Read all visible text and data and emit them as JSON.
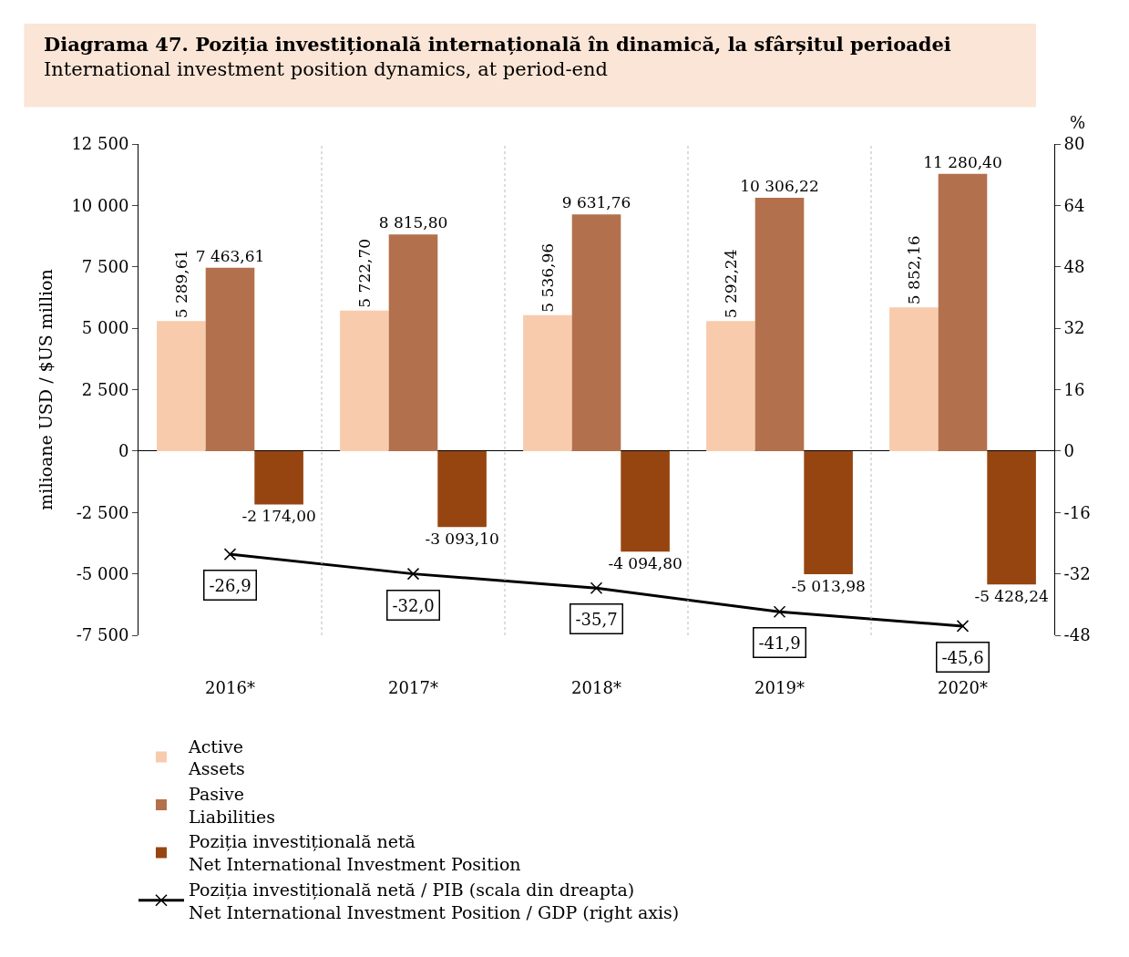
{
  "chart_data": {
    "type": "bar",
    "title": "Diagrama 47. Poziția investițională internațională în dinamică, la sfârșitul perioadei",
    "subtitle": "International investment position dynamics, at period-end",
    "ylabel": "milioane USD / $US million",
    "y2label": "%",
    "categories": [
      "2016*",
      "2017*",
      "2018*",
      "2019*",
      "2020*"
    ],
    "series": [
      {
        "name": "Active\nAssets",
        "color": "#f8cbad",
        "values": [
          5289.61,
          5722.7,
          5536.96,
          5292.24,
          5852.16
        ],
        "value_labels": [
          "5 289,61",
          "5 722,70",
          "5 536,96",
          "5 292,24",
          "5 852,16"
        ]
      },
      {
        "name": "Pasive\nLiabilities",
        "color": "#b3704c",
        "values": [
          7463.61,
          8815.8,
          9631.76,
          10306.22,
          11280.4
        ],
        "value_labels": [
          "7 463,61",
          "8 815,80",
          "9 631,76",
          "10 306,22",
          "11 280,40"
        ]
      },
      {
        "name": "Poziția investițională netă\nNet International Investment Position",
        "color": "#974510",
        "values": [
          -2174.0,
          -3093.1,
          -4094.8,
          -5013.98,
          -5428.24
        ],
        "value_labels": [
          "-2 174,00",
          "-3 093,10",
          "-4 094,80",
          "-5 013,98",
          "-5 428,24"
        ]
      },
      {
        "name": "Poziția investițională netă / PIB (scala din dreapta)\nNet International Investment Position / GDP (right axis)",
        "type": "line",
        "axis": "y2",
        "color": "#000000",
        "marker": "cross",
        "values": [
          -26.9,
          -32.0,
          -35.7,
          -41.9,
          -45.6
        ],
        "value_labels": [
          "-26,9",
          "-32,0",
          "-35,7",
          "-41,9",
          "-45,6"
        ]
      }
    ],
    "ylim": [
      -7500,
      12500
    ],
    "yticks": [
      {
        "value": -7500,
        "label": "-7 500"
      },
      {
        "value": -5000,
        "label": "-5 000"
      },
      {
        "value": -2500,
        "label": "-2 500"
      },
      0,
      {
        "value": 2500,
        "label": "2 500"
      },
      {
        "value": 5000,
        "label": "5 000"
      },
      {
        "value": 7500,
        "label": "7 500"
      },
      {
        "value": 10000,
        "label": "10 000"
      },
      {
        "value": 12500,
        "label": "12 500"
      }
    ],
    "y2lim": [
      -48,
      80
    ],
    "y2ticks": [
      -48,
      -32,
      -16,
      0,
      16,
      32,
      48,
      64,
      80
    ],
    "grid": "x",
    "legend": "bottom left"
  }
}
